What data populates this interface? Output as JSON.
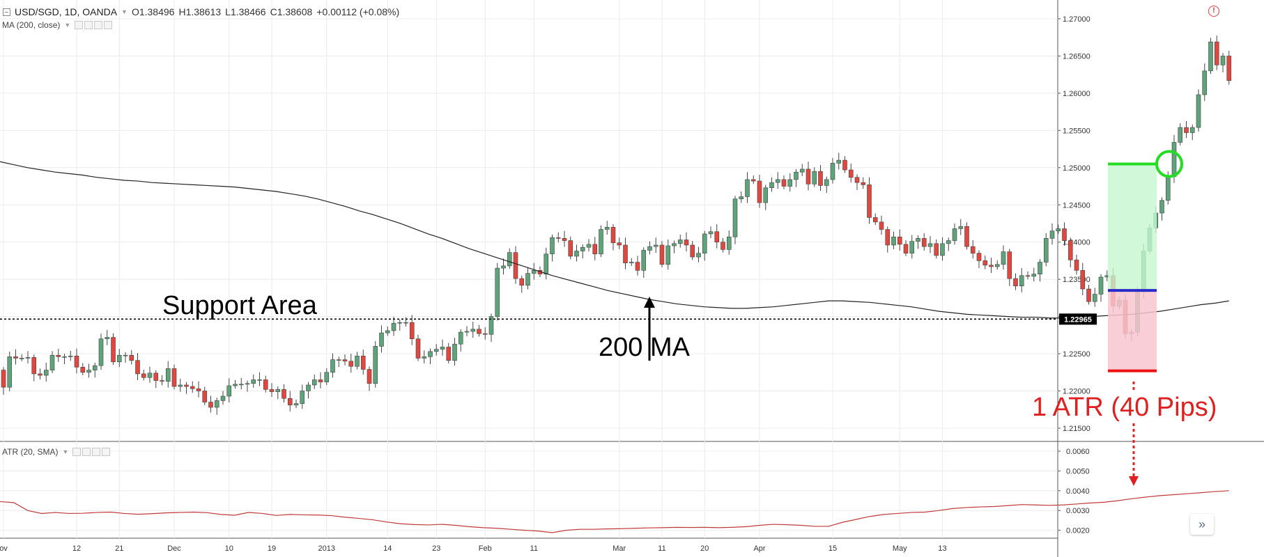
{
  "header": {
    "symbol": "USD/SGD, 1D, OANDA",
    "open": "O1.38496",
    "high": "H1.38613",
    "low": "L1.38466",
    "close": "C1.38608",
    "change": "+0.00112 (+0.08%)"
  },
  "indicators": {
    "ma_label": "MA (200, close)",
    "atr_label": "ATR (20, SMA)"
  },
  "annotations": {
    "support_area": "Support Area",
    "ma_label": "200 MA",
    "atr_label": "1 ATR (40 Pips)"
  },
  "colors": {
    "up": "#5fa37a",
    "down": "#e0473e",
    "wick": "#444444",
    "ma": "#222222",
    "atr": "#c0393b",
    "target_line": "#22dd22",
    "entry_line": "#2a2acc",
    "stop_line": "#ee1111"
  },
  "chart_data": [
    {
      "type": "candlestick",
      "title": "USD/SGD, 1D, OANDA",
      "ylim": [
        1.212,
        1.272
      ],
      "y_ticks": [
        "1.27000",
        "1.26500",
        "1.26000",
        "1.25500",
        "1.25000",
        "1.24500",
        "1.24000",
        "1.23500",
        "1.23000",
        "1.22500",
        "1.22000",
        "1.21500"
      ],
      "x_ticks": [
        {
          "label": "ov",
          "index": 0
        },
        {
          "label": "12",
          "index": 12
        },
        {
          "label": "21",
          "index": 19
        },
        {
          "label": "Dec",
          "index": 28
        },
        {
          "label": "10",
          "index": 37
        },
        {
          "label": "19",
          "index": 44
        },
        {
          "label": "2013",
          "index": 53
        },
        {
          "label": "14",
          "index": 63
        },
        {
          "label": "23",
          "index": 71
        },
        {
          "label": "Feb",
          "index": 79
        },
        {
          "label": "11",
          "index": 87
        },
        {
          "label": "Mar",
          "index": 101
        },
        {
          "label": "11",
          "index": 108
        },
        {
          "label": "20",
          "index": 115
        },
        {
          "label": "Apr",
          "index": 124
        },
        {
          "label": "15",
          "index": 136
        },
        {
          "label": "May",
          "index": 147
        },
        {
          "label": "13",
          "index": 154
        }
      ],
      "support_level": 1.22965,
      "support_label": "1.22965",
      "close": [
        1.2205,
        1.2246,
        1.2244,
        1.2244,
        1.2245,
        1.2223,
        1.2221,
        1.2228,
        1.2248,
        1.2246,
        1.2246,
        1.2247,
        1.2232,
        1.2225,
        1.2228,
        1.2234,
        1.227,
        1.2272,
        1.2239,
        1.2248,
        1.2248,
        1.2241,
        1.2223,
        1.2218,
        1.2224,
        1.2214,
        1.2213,
        1.223,
        1.2206,
        1.2208,
        1.2206,
        1.2203,
        1.22,
        1.2185,
        1.2178,
        1.2187,
        1.2193,
        1.2207,
        1.2209,
        1.2209,
        1.221,
        1.2215,
        1.2215,
        1.2202,
        1.2199,
        1.2202,
        1.219,
        1.2181,
        1.2183,
        1.22,
        1.2208,
        1.2215,
        1.2212,
        1.2225,
        1.2242,
        1.2242,
        1.224,
        1.2233,
        1.2247,
        1.2229,
        1.221,
        1.226,
        1.2278,
        1.2281,
        1.2291,
        1.2292,
        1.2292,
        1.227,
        1.2244,
        1.2246,
        1.2253,
        1.2256,
        1.2259,
        1.2241,
        1.2263,
        1.2279,
        1.228,
        1.2283,
        1.2277,
        1.2276,
        1.23,
        1.2365,
        1.2368,
        1.2386,
        1.2351,
        1.2342,
        1.2358,
        1.2362,
        1.2357,
        1.2384,
        1.2406,
        1.2405,
        1.2402,
        1.2381,
        1.2388,
        1.2393,
        1.2397,
        1.2384,
        1.2417,
        1.242,
        1.2399,
        1.2396,
        1.2372,
        1.2373,
        1.2362,
        1.2389,
        1.2394,
        1.2396,
        1.237,
        1.2395,
        1.2398,
        1.2403,
        1.2396,
        1.238,
        1.2385,
        1.2411,
        1.2414,
        1.24,
        1.239,
        1.2407,
        1.2458,
        1.2461,
        1.2484,
        1.2482,
        1.2453,
        1.2473,
        1.248,
        1.2484,
        1.2475,
        1.2484,
        1.2494,
        1.2498,
        1.2478,
        1.2495,
        1.2476,
        1.2484,
        1.2506,
        1.251,
        1.2497,
        1.2487,
        1.248,
        1.2477,
        1.2433,
        1.2427,
        1.2417,
        1.2396,
        1.2407,
        1.2397,
        1.2385,
        1.2401,
        1.2405,
        1.2394,
        1.2398,
        1.2382,
        1.2398,
        1.2402,
        1.2418,
        1.2421,
        1.2394,
        1.2385,
        1.2375,
        1.2369,
        1.2367,
        1.237,
        1.2387,
        1.2351,
        1.2341,
        1.2355,
        1.2354,
        1.2357,
        1.2373,
        1.2405,
        1.2415,
        1.2418,
        1.2402,
        1.2376,
        1.2362,
        1.2337,
        1.232,
        1.233,
        1.2353,
        1.2355,
        1.2314,
        1.2322,
        1.2277,
        1.2279,
        1.2333,
        1.2388,
        1.2419,
        1.2439,
        1.2456,
        1.2488,
        1.2534,
        1.2554,
        1.2547,
        1.2554,
        1.2598,
        1.263,
        1.2669,
        1.2638,
        1.265,
        1.2617
      ],
      "series": [
        {
          "name": "MA (200, close)",
          "values": [
            1.2508,
            1.2504,
            1.25,
            1.2497,
            1.2494,
            1.2492,
            1.249,
            1.2487,
            1.2485,
            1.2483,
            1.2482,
            1.248,
            1.2479,
            1.2478,
            1.2477,
            1.2476,
            1.2475,
            1.2474,
            1.2472,
            1.247,
            1.2468,
            1.2465,
            1.2462,
            1.2458,
            1.2453,
            1.2448,
            1.2442,
            1.2437,
            1.2431,
            1.2425,
            1.2418,
            1.2411,
            1.2405,
            1.2398,
            1.2391,
            1.2385,
            1.2379,
            1.2373,
            1.2367,
            1.2361,
            1.2355,
            1.235,
            1.2345,
            1.234,
            1.2335,
            1.2331,
            1.2327,
            1.2323,
            1.232,
            1.2317,
            1.2315,
            1.2313,
            1.2312,
            1.2311,
            1.2311,
            1.2312,
            1.2313,
            1.2315,
            1.2317,
            1.2319,
            1.2321,
            1.2321,
            1.232,
            1.2319,
            1.2317,
            1.2315,
            1.2313,
            1.231,
            1.2307,
            1.2305,
            1.2303,
            1.2302,
            1.2301,
            1.23,
            1.2299,
            1.2299,
            1.2298,
            1.2298,
            1.2299,
            1.23,
            1.2301,
            1.2302,
            1.2303,
            1.2305,
            1.2307,
            1.231,
            1.2313,
            1.2316,
            1.2318,
            1.2321
          ]
        },
        {
          "name": "ATR (20, SMA)",
          "values": [
            0.00345,
            0.0034,
            0.003,
            0.00285,
            0.0029,
            0.00285,
            0.00286,
            0.0029,
            0.00292,
            0.00285,
            0.00281,
            0.00284,
            0.00288,
            0.0029,
            0.00292,
            0.00289,
            0.0028,
            0.00276,
            0.0029,
            0.00285,
            0.00275,
            0.0028,
            0.00278,
            0.00277,
            0.00274,
            0.00266,
            0.0026,
            0.00253,
            0.00242,
            0.00233,
            0.00229,
            0.00227,
            0.0023,
            0.00225,
            0.00218,
            0.00213,
            0.0021,
            0.00205,
            0.002,
            0.00196,
            0.00188,
            0.002,
            0.00205,
            0.00205,
            0.00207,
            0.00208,
            0.0021,
            0.00212,
            0.00213,
            0.00215,
            0.00214,
            0.00215,
            0.00213,
            0.00215,
            0.00218,
            0.00225,
            0.0023,
            0.00228,
            0.00225,
            0.0022,
            0.0022,
            0.0024,
            0.00255,
            0.0027,
            0.0028,
            0.00285,
            0.0029,
            0.00292,
            0.003,
            0.0031,
            0.00315,
            0.00318,
            0.0032,
            0.00325,
            0.0033,
            0.00328,
            0.00326,
            0.00328,
            0.00333,
            0.00338,
            0.00342,
            0.0035,
            0.0036,
            0.00368,
            0.00375,
            0.0038,
            0.00385,
            0.0039,
            0.00396,
            0.004
          ]
        }
      ],
      "trade_markers": {
        "target_price": 1.2505,
        "entry_price": 1.2335,
        "stop_price": 1.2227
      }
    },
    {
      "type": "line",
      "title": "ATR (20, SMA)",
      "ylim": [
        0.0016,
        0.0064
      ],
      "y_ticks": [
        "0.0060",
        "0.0050",
        "0.0040",
        "0.0030",
        "0.0020"
      ],
      "series": [
        {
          "name": "ATR (20, SMA)",
          "values": [
            0.00345,
            0.0034,
            0.003,
            0.00285,
            0.0029,
            0.00285,
            0.00286,
            0.0029,
            0.00292,
            0.00285,
            0.00281,
            0.00284,
            0.00288,
            0.0029,
            0.00292,
            0.00289,
            0.0028,
            0.00276,
            0.0029,
            0.00285,
            0.00275,
            0.0028,
            0.00278,
            0.00277,
            0.00274,
            0.00266,
            0.0026,
            0.00253,
            0.00242,
            0.00233,
            0.00229,
            0.00227,
            0.0023,
            0.00225,
            0.00218,
            0.00213,
            0.0021,
            0.00205,
            0.002,
            0.00196,
            0.00188,
            0.002,
            0.00205,
            0.00205,
            0.00207,
            0.00208,
            0.0021,
            0.00212,
            0.00213,
            0.00215,
            0.00214,
            0.00215,
            0.00213,
            0.00215,
            0.00218,
            0.00225,
            0.0023,
            0.00228,
            0.00225,
            0.0022,
            0.0022,
            0.0024,
            0.00255,
            0.0027,
            0.0028,
            0.00285,
            0.0029,
            0.00292,
            0.003,
            0.0031,
            0.00315,
            0.00318,
            0.0032,
            0.00325,
            0.0033,
            0.00328,
            0.00326,
            0.00328,
            0.00333,
            0.00338,
            0.00342,
            0.0035,
            0.0036,
            0.00368,
            0.00375,
            0.0038,
            0.00385,
            0.0039,
            0.00396,
            0.004
          ]
        }
      ]
    }
  ]
}
